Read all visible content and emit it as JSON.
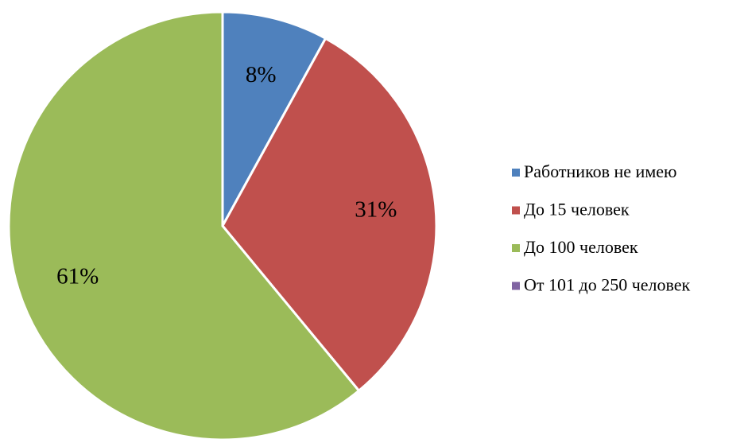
{
  "chart_data": {
    "type": "pie",
    "categories": [
      "Работников не имею",
      "До 15 человек",
      "До 100 человек",
      "От 101 до 250 человек"
    ],
    "values": [
      8,
      31,
      61,
      0
    ],
    "value_labels": [
      "8%",
      "31%",
      "61%",
      null
    ],
    "colors": [
      "#4f81bd",
      "#c0504d",
      "#9bbb59",
      "#8064a2"
    ],
    "legend": "right"
  }
}
